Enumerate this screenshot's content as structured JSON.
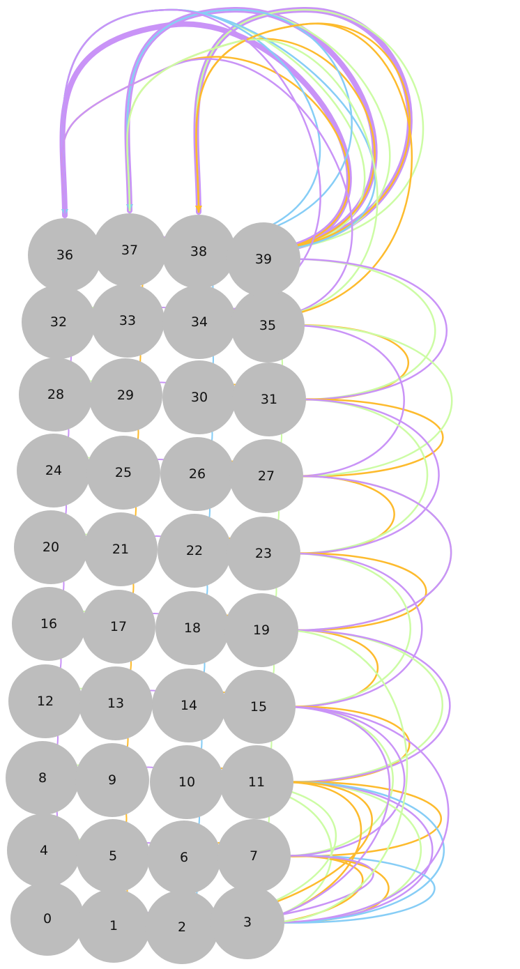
{
  "diagram": {
    "type": "network",
    "colors": {
      "node_fill": "#bdbdbd",
      "label": "#111111",
      "purple": "#c993f7",
      "green": "#ccfca4",
      "orange": "#fdbb2d",
      "blue": "#86cdf6"
    },
    "nodes": [
      {
        "id": 0,
        "label": "0"
      },
      {
        "id": 1,
        "label": "1"
      },
      {
        "id": 2,
        "label": "2"
      },
      {
        "id": 3,
        "label": "3"
      },
      {
        "id": 4,
        "label": "4"
      },
      {
        "id": 5,
        "label": "5"
      },
      {
        "id": 6,
        "label": "6"
      },
      {
        "id": 7,
        "label": "7"
      },
      {
        "id": 8,
        "label": "8"
      },
      {
        "id": 9,
        "label": "9"
      },
      {
        "id": 10,
        "label": "10"
      },
      {
        "id": 11,
        "label": "11"
      },
      {
        "id": 12,
        "label": "12"
      },
      {
        "id": 13,
        "label": "13"
      },
      {
        "id": 14,
        "label": "14"
      },
      {
        "id": 15,
        "label": "15"
      },
      {
        "id": 16,
        "label": "16"
      },
      {
        "id": 17,
        "label": "17"
      },
      {
        "id": 18,
        "label": "18"
      },
      {
        "id": 19,
        "label": "19"
      },
      {
        "id": 20,
        "label": "20"
      },
      {
        "id": 21,
        "label": "21"
      },
      {
        "id": 22,
        "label": "22"
      },
      {
        "id": 23,
        "label": "23"
      },
      {
        "id": 24,
        "label": "24"
      },
      {
        "id": 25,
        "label": "25"
      },
      {
        "id": 26,
        "label": "26"
      },
      {
        "id": 27,
        "label": "27"
      },
      {
        "id": 28,
        "label": "28"
      },
      {
        "id": 29,
        "label": "29"
      },
      {
        "id": 30,
        "label": "30"
      },
      {
        "id": 31,
        "label": "31"
      },
      {
        "id": 32,
        "label": "32"
      },
      {
        "id": 33,
        "label": "33"
      },
      {
        "id": 34,
        "label": "34"
      },
      {
        "id": 35,
        "label": "35"
      },
      {
        "id": 36,
        "label": "36"
      },
      {
        "id": 37,
        "label": "37"
      },
      {
        "id": 38,
        "label": "38"
      },
      {
        "id": 39,
        "label": "39"
      }
    ],
    "edges": [
      {
        "from": 39,
        "to": 36,
        "color": "purple",
        "weight": 3
      },
      {
        "from": 39,
        "to": 37,
        "color": "purple",
        "weight": 3
      },
      {
        "from": 39,
        "to": 38,
        "color": "purple",
        "weight": 3
      },
      {
        "from": 39,
        "to": 36,
        "color": "green",
        "weight": 1
      },
      {
        "from": 39,
        "to": 37,
        "color": "green",
        "weight": 1
      },
      {
        "from": 39,
        "to": 38,
        "color": "green",
        "weight": 1
      },
      {
        "from": 39,
        "to": 36,
        "color": "orange",
        "weight": 1
      },
      {
        "from": 39,
        "to": 37,
        "color": "orange",
        "weight": 1
      },
      {
        "from": 39,
        "to": 38,
        "color": "orange",
        "weight": 1
      },
      {
        "from": 38,
        "to": 36,
        "color": "blue",
        "weight": 1
      },
      {
        "from": 38,
        "to": 37,
        "color": "blue",
        "weight": 1
      },
      {
        "from": 39,
        "to": 36,
        "color": "blue",
        "weight": 1
      },
      {
        "from": 35,
        "to": 36,
        "color": "purple",
        "weight": 1
      },
      {
        "from": 35,
        "to": 37,
        "color": "green",
        "weight": 1
      },
      {
        "from": 35,
        "to": 38,
        "color": "orange",
        "weight": 1
      },
      {
        "from": 34,
        "to": 36,
        "color": "purple",
        "weight": 1
      },
      {
        "from": 31,
        "to": 35,
        "color": "orange",
        "weight": 1
      },
      {
        "from": 31,
        "to": 39,
        "color": "green",
        "weight": 1
      },
      {
        "from": 31,
        "to": 39,
        "color": "purple",
        "weight": 1
      },
      {
        "from": 27,
        "to": 31,
        "color": "orange",
        "weight": 1
      },
      {
        "from": 27,
        "to": 35,
        "color": "green",
        "weight": 1
      },
      {
        "from": 27,
        "to": 35,
        "color": "purple",
        "weight": 1
      },
      {
        "from": 23,
        "to": 27,
        "color": "orange",
        "weight": 1
      },
      {
        "from": 23,
        "to": 31,
        "color": "green",
        "weight": 1
      },
      {
        "from": 23,
        "to": 31,
        "color": "purple",
        "weight": 1
      },
      {
        "from": 19,
        "to": 23,
        "color": "orange",
        "weight": 1
      },
      {
        "from": 19,
        "to": 27,
        "color": "green",
        "weight": 1
      },
      {
        "from": 19,
        "to": 27,
        "color": "purple",
        "weight": 1
      },
      {
        "from": 15,
        "to": 19,
        "color": "orange",
        "weight": 1
      },
      {
        "from": 15,
        "to": 23,
        "color": "green",
        "weight": 1
      },
      {
        "from": 15,
        "to": 23,
        "color": "purple",
        "weight": 1
      },
      {
        "from": 11,
        "to": 15,
        "color": "orange",
        "weight": 1
      },
      {
        "from": 11,
        "to": 19,
        "color": "green",
        "weight": 1
      },
      {
        "from": 11,
        "to": 19,
        "color": "purple",
        "weight": 1
      },
      {
        "from": 7,
        "to": 11,
        "color": "orange",
        "weight": 1
      },
      {
        "from": 7,
        "to": 15,
        "color": "green",
        "weight": 1
      },
      {
        "from": 7,
        "to": 15,
        "color": "purple",
        "weight": 1
      },
      {
        "from": 3,
        "to": 7,
        "color": "orange",
        "weight": 1
      },
      {
        "from": 3,
        "to": 11,
        "color": "green",
        "weight": 1
      },
      {
        "from": 3,
        "to": 11,
        "color": "purple",
        "weight": 1
      },
      {
        "from": 3,
        "to": 11,
        "color": "blue",
        "weight": 1
      },
      {
        "from": 3,
        "to": 7,
        "color": "blue",
        "weight": 1
      },
      {
        "from": 2,
        "to": 11,
        "color": "orange",
        "weight": 1
      },
      {
        "from": 2,
        "to": 10,
        "color": "green",
        "weight": 1
      },
      {
        "from": 2,
        "to": 7,
        "color": "orange",
        "weight": 1
      },
      {
        "from": 1,
        "to": 11,
        "color": "orange",
        "weight": 1
      },
      {
        "from": 1,
        "to": 10,
        "color": "green",
        "weight": 1
      },
      {
        "from": 1,
        "to": 7,
        "color": "purple",
        "weight": 1
      },
      {
        "from": 3,
        "to": 15,
        "color": "purple",
        "weight": 1
      },
      {
        "from": 3,
        "to": 19,
        "color": "green",
        "weight": 1
      },
      {
        "from": 2,
        "to": 15,
        "color": "purple",
        "weight": 1
      }
    ]
  }
}
